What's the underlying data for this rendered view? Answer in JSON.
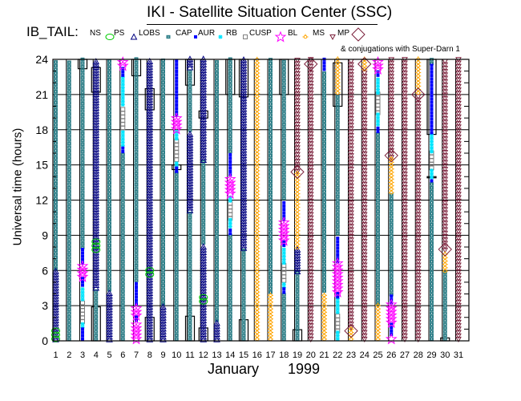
{
  "chart_data": {
    "type": "scatter",
    "title": "IKI - Satellite Situation Center (SSC)",
    "legend_title": "IB_TAIL:",
    "legend": [
      {
        "key": "NS",
        "label": "NS",
        "symbol": "none",
        "color": "#000000"
      },
      {
        "key": "PS",
        "label": "PS",
        "symbol": "circle",
        "color": "#00cc00"
      },
      {
        "key": "LOBS",
        "label": "LOBS",
        "symbol": "triangle-up",
        "color": "#000080"
      },
      {
        "key": "CAP",
        "label": "CAP",
        "symbol": "square-filled",
        "color": "#2f7f88"
      },
      {
        "key": "AUR",
        "label": "AUR",
        "symbol": "dot",
        "color": "#0000ff"
      },
      {
        "key": "RB",
        "label": "RB",
        "symbol": "asterisk",
        "color": "#00e5ff"
      },
      {
        "key": "CUSP",
        "label": "CUSP",
        "symbol": "square-open",
        "color": "#808080"
      },
      {
        "key": "BL",
        "label": "BL",
        "symbol": "star",
        "color": "#ff00ff"
      },
      {
        "key": "MS",
        "label": "MS",
        "symbol": "sun",
        "color": "#ffa500"
      },
      {
        "key": "MP",
        "label": "MP",
        "symbol": "triangle-down",
        "color": "#7a1f3a"
      }
    ],
    "conjugation_symbol": {
      "symbol": "diamond",
      "color": "#7a1f3a"
    },
    "conjugation_note": "& conjugations with Super-Darn 1",
    "xlabel_month": "January",
    "xlabel_year": "1999",
    "ylabel": "Universal time (hours)",
    "xlim": [
      1,
      31
    ],
    "ylim": [
      0,
      24
    ],
    "x_ticks": [
      "1",
      "2",
      "3",
      "4",
      "5",
      "6",
      "7",
      "8",
      "9",
      "10",
      "11",
      "12",
      "13",
      "14",
      "15",
      "16",
      "17",
      "18",
      "19",
      "20",
      "21",
      "22",
      "23",
      "24",
      "25",
      "26",
      "27",
      "28",
      "29",
      "30",
      "31"
    ],
    "y_ticks": [
      "0",
      "3",
      "6",
      "9",
      "12",
      "15",
      "18",
      "21",
      "24"
    ],
    "grid": true,
    "days": [
      {
        "day": 1,
        "segments": [
          [
            0,
            6,
            "LOBS"
          ],
          [
            6,
            24,
            "CAP"
          ],
          [
            0,
            1,
            "PS"
          ]
        ],
        "boxes": [],
        "conjugations": []
      },
      {
        "day": 2,
        "segments": [
          [
            0,
            24,
            "CAP"
          ]
        ],
        "boxes": [],
        "conjugations": []
      },
      {
        "day": 3,
        "segments": [
          [
            0,
            1,
            "AUR"
          ],
          [
            1,
            1.5,
            "RB"
          ],
          [
            1.5,
            3.4,
            "CUSP"
          ],
          [
            3.4,
            4.6,
            "RB"
          ],
          [
            4.6,
            5.3,
            "AUR"
          ],
          [
            5.3,
            6.5,
            "BL"
          ],
          [
            6.5,
            7.8,
            "AUR"
          ],
          [
            7.8,
            24,
            "CAP"
          ]
        ],
        "boxes": [
          [
            23.2,
            24
          ]
        ],
        "conjugations": []
      },
      {
        "day": 4,
        "segments": [
          [
            0,
            4.4,
            "CAP"
          ],
          [
            4.4,
            24,
            "LOBS"
          ],
          [
            7.6,
            8.6,
            "PS"
          ]
        ],
        "boxes": [
          [
            0,
            2.9
          ],
          [
            21.2,
            23.3
          ]
        ],
        "conjugations": []
      },
      {
        "day": 5,
        "segments": [
          [
            0,
            4.2,
            "LOBS"
          ],
          [
            4.2,
            24,
            "CAP"
          ]
        ],
        "boxes": [],
        "conjugations": []
      },
      {
        "day": 6,
        "segments": [
          [
            0,
            16,
            "CAP"
          ],
          [
            16,
            16.5,
            "AUR"
          ],
          [
            16.5,
            18,
            "RB"
          ],
          [
            18,
            20,
            "CUSP"
          ],
          [
            20,
            22.5,
            "RB"
          ],
          [
            22.5,
            23.3,
            "AUR"
          ],
          [
            23.3,
            24,
            "BL"
          ]
        ],
        "boxes": [],
        "conjugations": []
      },
      {
        "day": 7,
        "segments": [
          [
            0,
            1.6,
            "BL"
          ],
          [
            1.6,
            2,
            "AUR"
          ],
          [
            2,
            3,
            "BL"
          ],
          [
            3,
            5,
            "AUR"
          ],
          [
            5,
            24,
            "CAP"
          ]
        ],
        "boxes": [
          [
            22.6,
            24
          ]
        ],
        "conjugations": []
      },
      {
        "day": 8,
        "segments": [
          [
            0,
            24,
            "LOBS"
          ],
          [
            5.5,
            6.1,
            "PS"
          ]
        ],
        "boxes": [
          [
            0,
            2
          ],
          [
            19.7,
            21.5
          ]
        ],
        "conjugations": []
      },
      {
        "day": 9,
        "segments": [
          [
            0,
            3,
            "LOBS"
          ],
          [
            3,
            24,
            "CAP"
          ]
        ],
        "boxes": [],
        "conjugations": []
      },
      {
        "day": 10,
        "segments": [
          [
            0,
            14.3,
            "CAP"
          ],
          [
            14.3,
            14.7,
            "AUR"
          ],
          [
            14.7,
            15.3,
            "RB"
          ],
          [
            15.3,
            17.1,
            "CUSP"
          ],
          [
            17.1,
            17.9,
            "RB"
          ],
          [
            17.9,
            19.1,
            "BL"
          ],
          [
            19.1,
            24,
            "AUR"
          ]
        ],
        "boxes": [
          [
            14.6,
            15
          ]
        ],
        "conjugations": []
      },
      {
        "day": 11,
        "segments": [
          [
            0,
            11,
            "CAP"
          ],
          [
            11,
            17.8,
            "LOBS"
          ],
          [
            17.8,
            23.2,
            "CAP"
          ],
          [
            23.2,
            24,
            "LOBS"
          ]
        ],
        "boxes": [
          [
            0,
            2.1
          ],
          [
            21.8,
            24
          ]
        ],
        "conjugations": []
      },
      {
        "day": 12,
        "segments": [
          [
            0,
            8.2,
            "LOBS"
          ],
          [
            8.2,
            15.3,
            "CAP"
          ],
          [
            15.3,
            24,
            "LOBS"
          ],
          [
            3.2,
            3.9,
            "PS"
          ]
        ],
        "boxes": [
          [
            0,
            1.1
          ],
          [
            19,
            19.6
          ]
        ],
        "conjugations": []
      },
      {
        "day": 13,
        "segments": [
          [
            0,
            1.6,
            "LOBS"
          ],
          [
            1.6,
            24,
            "CAP"
          ]
        ],
        "boxes": [],
        "conjugations": []
      },
      {
        "day": 14,
        "segments": [
          [
            0,
            9,
            "CAP"
          ],
          [
            9,
            9.6,
            "AUR"
          ],
          [
            9.6,
            10.3,
            "RB"
          ],
          [
            10.3,
            11.8,
            "CUSP"
          ],
          [
            11.8,
            12.4,
            "RB"
          ],
          [
            12.4,
            14,
            "BL"
          ],
          [
            14,
            16,
            "AUR"
          ],
          [
            16,
            24,
            "CAP"
          ]
        ],
        "boxes": [
          [
            21,
            24
          ]
        ],
        "conjugations": []
      },
      {
        "day": 15,
        "segments": [
          [
            0,
            7.8,
            "CAP"
          ],
          [
            7.8,
            24,
            "LOBS"
          ]
        ],
        "boxes": [
          [
            0,
            1.8
          ],
          [
            20.8,
            24
          ]
        ],
        "conjugations": []
      },
      {
        "day": 16,
        "segments": [
          [
            0,
            24,
            "MS"
          ]
        ],
        "boxes": [],
        "conjugations": []
      },
      {
        "day": 17,
        "segments": [
          [
            0,
            4,
            "MS"
          ],
          [
            4,
            24,
            "CAP"
          ]
        ],
        "boxes": [],
        "conjugations": []
      },
      {
        "day": 18,
        "segments": [
          [
            0,
            4,
            "CAP"
          ],
          [
            4,
            4.4,
            "AUR"
          ],
          [
            4.4,
            5,
            "RB"
          ],
          [
            5,
            6.5,
            "CUSP"
          ],
          [
            6.5,
            8,
            "RB"
          ],
          [
            8,
            8.4,
            "AUR"
          ],
          [
            8.4,
            10.2,
            "BL"
          ],
          [
            10.2,
            12,
            "AUR"
          ],
          [
            12,
            24,
            "CAP"
          ]
        ],
        "boxes": [
          [
            21,
            24
          ]
        ],
        "conjugations": []
      },
      {
        "day": 19,
        "segments": [
          [
            0,
            5.8,
            "CAP"
          ],
          [
            5.8,
            7.8,
            "LOBS"
          ],
          [
            7.8,
            14.3,
            "MS"
          ],
          [
            14.3,
            24,
            "MP"
          ]
        ],
        "boxes": [
          [
            0,
            0.95
          ]
        ],
        "conjugations": [
          14.4
        ]
      },
      {
        "day": 20,
        "segments": [
          [
            0,
            24,
            "MP"
          ]
        ],
        "boxes": [],
        "conjugations": [
          23.6
        ]
      },
      {
        "day": 21,
        "segments": [
          [
            0,
            4.1,
            "MS"
          ],
          [
            4.1,
            23,
            "CAP"
          ],
          [
            23,
            24,
            "AUR"
          ]
        ],
        "boxes": [],
        "conjugations": []
      },
      {
        "day": 22,
        "segments": [
          [
            0,
            0.7,
            "RB"
          ],
          [
            0.7,
            2.3,
            "CUSP"
          ],
          [
            2.3,
            3.6,
            "RB"
          ],
          [
            3.6,
            4,
            "AUR"
          ],
          [
            4,
            6.6,
            "BL"
          ],
          [
            6.6,
            9,
            "AUR"
          ],
          [
            9,
            21,
            "CAP"
          ],
          [
            21,
            24,
            "MS"
          ]
        ],
        "boxes": [
          [
            20,
            23.7
          ]
        ],
        "conjugations": []
      },
      {
        "day": 23,
        "segments": [
          [
            0,
            1,
            "MS"
          ],
          [
            1,
            24,
            "MP"
          ]
        ],
        "boxes": [],
        "conjugations": [
          0.85
        ]
      },
      {
        "day": 24,
        "segments": [
          [
            0,
            23,
            "MP"
          ],
          [
            23,
            24,
            "MS"
          ]
        ],
        "boxes": [],
        "conjugations": [
          23.6
        ]
      },
      {
        "day": 25,
        "segments": [
          [
            0,
            3,
            "MS"
          ],
          [
            3,
            17.7,
            "CAP"
          ],
          [
            17.7,
            18.3,
            "AUR"
          ],
          [
            18.3,
            19.3,
            "RB"
          ],
          [
            19.3,
            21,
            "CUSP"
          ],
          [
            21,
            22.5,
            "RB"
          ],
          [
            22.5,
            23,
            "AUR"
          ],
          [
            23,
            24,
            "BL"
          ]
        ],
        "boxes": [],
        "conjugations": []
      },
      {
        "day": 26,
        "segments": [
          [
            0,
            0.4,
            "BL"
          ],
          [
            0.4,
            1.4,
            "AUR"
          ],
          [
            1.4,
            3.1,
            "BL"
          ],
          [
            3.1,
            3.8,
            "AUR"
          ],
          [
            3.8,
            12.5,
            "CAP"
          ],
          [
            12.5,
            15.5,
            "MS"
          ],
          [
            15.5,
            24,
            "MP"
          ]
        ],
        "boxes": [],
        "conjugations": [
          15.8
        ]
      },
      {
        "day": 27,
        "segments": [
          [
            0,
            24,
            "MP"
          ]
        ],
        "boxes": [],
        "conjugations": []
      },
      {
        "day": 28,
        "segments": [
          [
            0,
            21,
            "MP"
          ],
          [
            21,
            24,
            "MS"
          ]
        ],
        "boxes": [],
        "conjugations": [
          21
        ]
      },
      {
        "day": 29,
        "segments": [
          [
            0,
            13.5,
            "CAP"
          ],
          [
            13.5,
            13.8,
            "AUR"
          ],
          [
            13.8,
            14.6,
            "RB"
          ],
          [
            14.6,
            16,
            "CUSP"
          ],
          [
            16,
            17.6,
            "RB"
          ],
          [
            17.6,
            23.5,
            "AUR"
          ],
          [
            23.5,
            24,
            "CAP"
          ]
        ],
        "boxes": [
          [
            17.6,
            24
          ],
          [
            13.9,
            14
          ]
        ],
        "conjugations": []
      },
      {
        "day": 30,
        "segments": [
          [
            0,
            5.8,
            "CAP"
          ],
          [
            5.8,
            7.6,
            "MS"
          ],
          [
            7.6,
            24,
            "MP"
          ]
        ],
        "boxes": [
          [
            0,
            0.25
          ]
        ],
        "conjugations": [
          7.8
        ]
      },
      {
        "day": 31,
        "segments": [
          [
            0,
            24,
            "MP"
          ]
        ],
        "boxes": [],
        "conjugations": []
      }
    ]
  }
}
